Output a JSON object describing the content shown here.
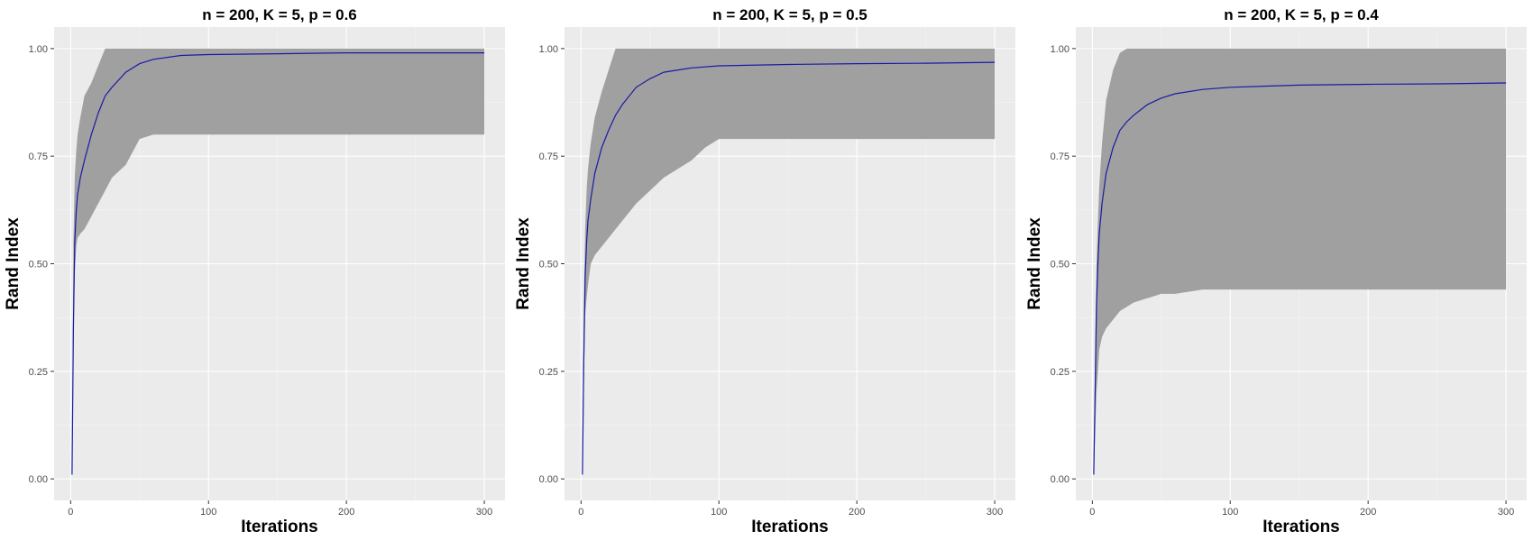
{
  "colors": {
    "panel_bg": "#ebebeb",
    "grid_major": "#ffffff",
    "grid_minor": "#f5f5f5",
    "ribbon": "#a0a0a0",
    "line": "#1a1aa8",
    "tick": "#333333"
  },
  "chart_data": [
    {
      "type": "area",
      "title": "n = 200, K = 5, p = 0.6",
      "xlabel": "Iterations",
      "ylabel": "Rand Index",
      "xlim": [
        -12,
        315
      ],
      "ylim": [
        -0.05,
        1.05
      ],
      "x_ticks": [
        0,
        100,
        200,
        300
      ],
      "y_ticks": [
        0,
        0.25,
        0.5,
        0.75,
        1.0
      ],
      "y_tick_labels": [
        "0.00",
        "0.25",
        "0.50",
        "0.75",
        "1.00"
      ],
      "grid": true,
      "series": [
        {
          "kind": "ribbon",
          "x": [
            1,
            2,
            3,
            4,
            5,
            7,
            10,
            15,
            20,
            25,
            30,
            40,
            50,
            60,
            80,
            100,
            150,
            200,
            250,
            300
          ],
          "lower": [
            0.01,
            0.3,
            0.48,
            0.54,
            0.56,
            0.57,
            0.58,
            0.61,
            0.64,
            0.67,
            0.7,
            0.73,
            0.79,
            0.8,
            0.8,
            0.8,
            0.8,
            0.8,
            0.8,
            0.8
          ],
          "upper": [
            0.05,
            0.55,
            0.7,
            0.76,
            0.8,
            0.84,
            0.89,
            0.92,
            0.96,
            1.0,
            1.0,
            1.0,
            1.0,
            1.0,
            1.0,
            1.0,
            1.0,
            1.0,
            1.0,
            1.0
          ]
        },
        {
          "kind": "mean",
          "x": [
            1,
            2,
            3,
            4,
            5,
            7,
            10,
            15,
            20,
            25,
            30,
            40,
            50,
            60,
            80,
            100,
            150,
            200,
            250,
            300
          ],
          "values": [
            0.01,
            0.35,
            0.55,
            0.62,
            0.66,
            0.7,
            0.74,
            0.8,
            0.85,
            0.89,
            0.91,
            0.945,
            0.965,
            0.975,
            0.984,
            0.986,
            0.988,
            0.99,
            0.99,
            0.99
          ]
        }
      ]
    },
    {
      "type": "area",
      "title": "n = 200, K = 5, p = 0.5",
      "xlabel": "Iterations",
      "ylabel": "Rand Index",
      "xlim": [
        -12,
        315
      ],
      "ylim": [
        -0.05,
        1.05
      ],
      "x_ticks": [
        0,
        100,
        200,
        300
      ],
      "y_ticks": [
        0,
        0.25,
        0.5,
        0.75,
        1.0
      ],
      "y_tick_labels": [
        "0.00",
        "0.25",
        "0.50",
        "0.75",
        "1.00"
      ],
      "grid": true,
      "series": [
        {
          "kind": "ribbon",
          "x": [
            1,
            2,
            3,
            4,
            5,
            7,
            10,
            15,
            20,
            25,
            30,
            40,
            50,
            60,
            70,
            80,
            90,
            100,
            150,
            200,
            250,
            300
          ],
          "lower": [
            0.01,
            0.2,
            0.38,
            0.42,
            0.45,
            0.5,
            0.52,
            0.54,
            0.56,
            0.58,
            0.6,
            0.64,
            0.67,
            0.7,
            0.72,
            0.74,
            0.77,
            0.79,
            0.79,
            0.79,
            0.79,
            0.79
          ],
          "upper": [
            0.05,
            0.4,
            0.58,
            0.67,
            0.72,
            0.78,
            0.84,
            0.9,
            0.95,
            1.0,
            1.0,
            1.0,
            1.0,
            1.0,
            1.0,
            1.0,
            1.0,
            1.0,
            1.0,
            1.0,
            1.0,
            1.0
          ]
        },
        {
          "kind": "mean",
          "x": [
            1,
            2,
            3,
            4,
            5,
            7,
            10,
            15,
            20,
            25,
            30,
            40,
            50,
            60,
            80,
            100,
            150,
            200,
            250,
            300
          ],
          "values": [
            0.01,
            0.28,
            0.47,
            0.55,
            0.6,
            0.65,
            0.71,
            0.77,
            0.81,
            0.845,
            0.87,
            0.91,
            0.93,
            0.945,
            0.955,
            0.96,
            0.963,
            0.965,
            0.966,
            0.968
          ]
        }
      ]
    },
    {
      "type": "area",
      "title": "n = 200, K = 5, p = 0.4",
      "xlabel": "Iterations",
      "ylabel": "Rand Index",
      "xlim": [
        -12,
        315
      ],
      "ylim": [
        -0.05,
        1.05
      ],
      "x_ticks": [
        0,
        100,
        200,
        300
      ],
      "y_ticks": [
        0,
        0.25,
        0.5,
        0.75,
        1.0
      ],
      "y_tick_labels": [
        "0.00",
        "0.25",
        "0.50",
        "0.75",
        "1.00"
      ],
      "grid": true,
      "series": [
        {
          "kind": "ribbon",
          "x": [
            1,
            2,
            3,
            4,
            5,
            7,
            10,
            15,
            20,
            25,
            30,
            40,
            50,
            60,
            80,
            100,
            150,
            200,
            250,
            300
          ],
          "lower": [
            0.01,
            0.1,
            0.2,
            0.25,
            0.3,
            0.33,
            0.35,
            0.37,
            0.39,
            0.4,
            0.41,
            0.42,
            0.43,
            0.43,
            0.44,
            0.44,
            0.44,
            0.44,
            0.44,
            0.44
          ],
          "upper": [
            0.05,
            0.3,
            0.5,
            0.6,
            0.68,
            0.78,
            0.88,
            0.95,
            0.99,
            1.0,
            1.0,
            1.0,
            1.0,
            1.0,
            1.0,
            1.0,
            1.0,
            1.0,
            1.0,
            1.0
          ]
        },
        {
          "kind": "mean",
          "x": [
            1,
            2,
            3,
            4,
            5,
            7,
            10,
            15,
            20,
            25,
            30,
            40,
            50,
            60,
            80,
            100,
            150,
            200,
            250,
            300
          ],
          "values": [
            0.01,
            0.2,
            0.4,
            0.5,
            0.57,
            0.64,
            0.71,
            0.77,
            0.81,
            0.83,
            0.845,
            0.87,
            0.885,
            0.895,
            0.905,
            0.91,
            0.915,
            0.917,
            0.918,
            0.92
          ]
        }
      ]
    }
  ]
}
